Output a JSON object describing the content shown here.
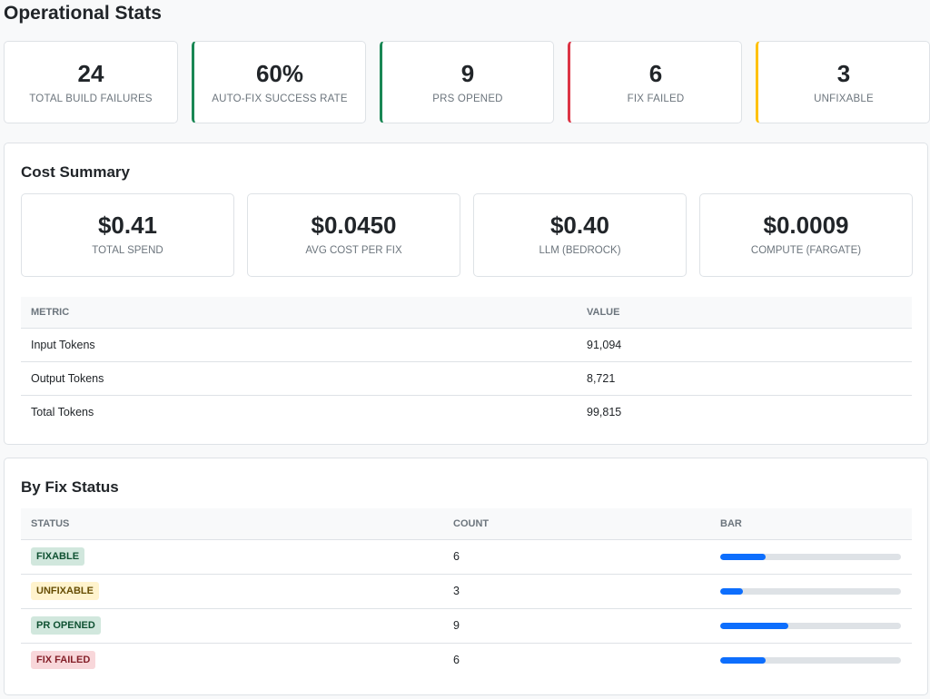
{
  "title": "Operational Stats",
  "stats": [
    {
      "value": "24",
      "label": "TOTAL BUILD FAILURES",
      "accent": null
    },
    {
      "value": "60%",
      "label": "AUTO-FIX SUCCESS RATE",
      "accent": "#198754"
    },
    {
      "value": "9",
      "label": "PRS OPENED",
      "accent": "#198754"
    },
    {
      "value": "6",
      "label": "FIX FAILED",
      "accent": "#dc3545"
    },
    {
      "value": "3",
      "label": "UNFIXABLE",
      "accent": "#ffc107"
    }
  ],
  "cost": {
    "title": "Cost Summary",
    "cards": [
      {
        "value": "$0.41",
        "label": "TOTAL SPEND"
      },
      {
        "value": "$0.0450",
        "label": "AVG COST PER FIX"
      },
      {
        "value": "$0.40",
        "label": "LLM (BEDROCK)"
      },
      {
        "value": "$0.0009",
        "label": "COMPUTE (FARGATE)"
      }
    ],
    "headers": [
      "METRIC",
      "VALUE"
    ],
    "rows": [
      [
        "Input Tokens",
        "91,094"
      ],
      [
        "Output Tokens",
        "8,721"
      ],
      [
        "Total Tokens",
        "99,815"
      ]
    ]
  },
  "fix": {
    "title": "By Fix Status",
    "headers": [
      "STATUS",
      "COUNT",
      "BAR"
    ],
    "rows": [
      {
        "status": "FIXABLE",
        "count": "6",
        "fraction": 0.25,
        "bg": "#d1e7dd",
        "fg": "#0f5132"
      },
      {
        "status": "UNFIXABLE",
        "count": "3",
        "fraction": 0.125,
        "bg": "#fff3cd",
        "fg": "#664d03"
      },
      {
        "status": "PR OPENED",
        "count": "9",
        "fraction": 0.375,
        "bg": "#d1e7dd",
        "fg": "#0f5132"
      },
      {
        "status": "FIX FAILED",
        "count": "6",
        "fraction": 0.25,
        "bg": "#f8d7da",
        "fg": "#842029"
      }
    ]
  }
}
